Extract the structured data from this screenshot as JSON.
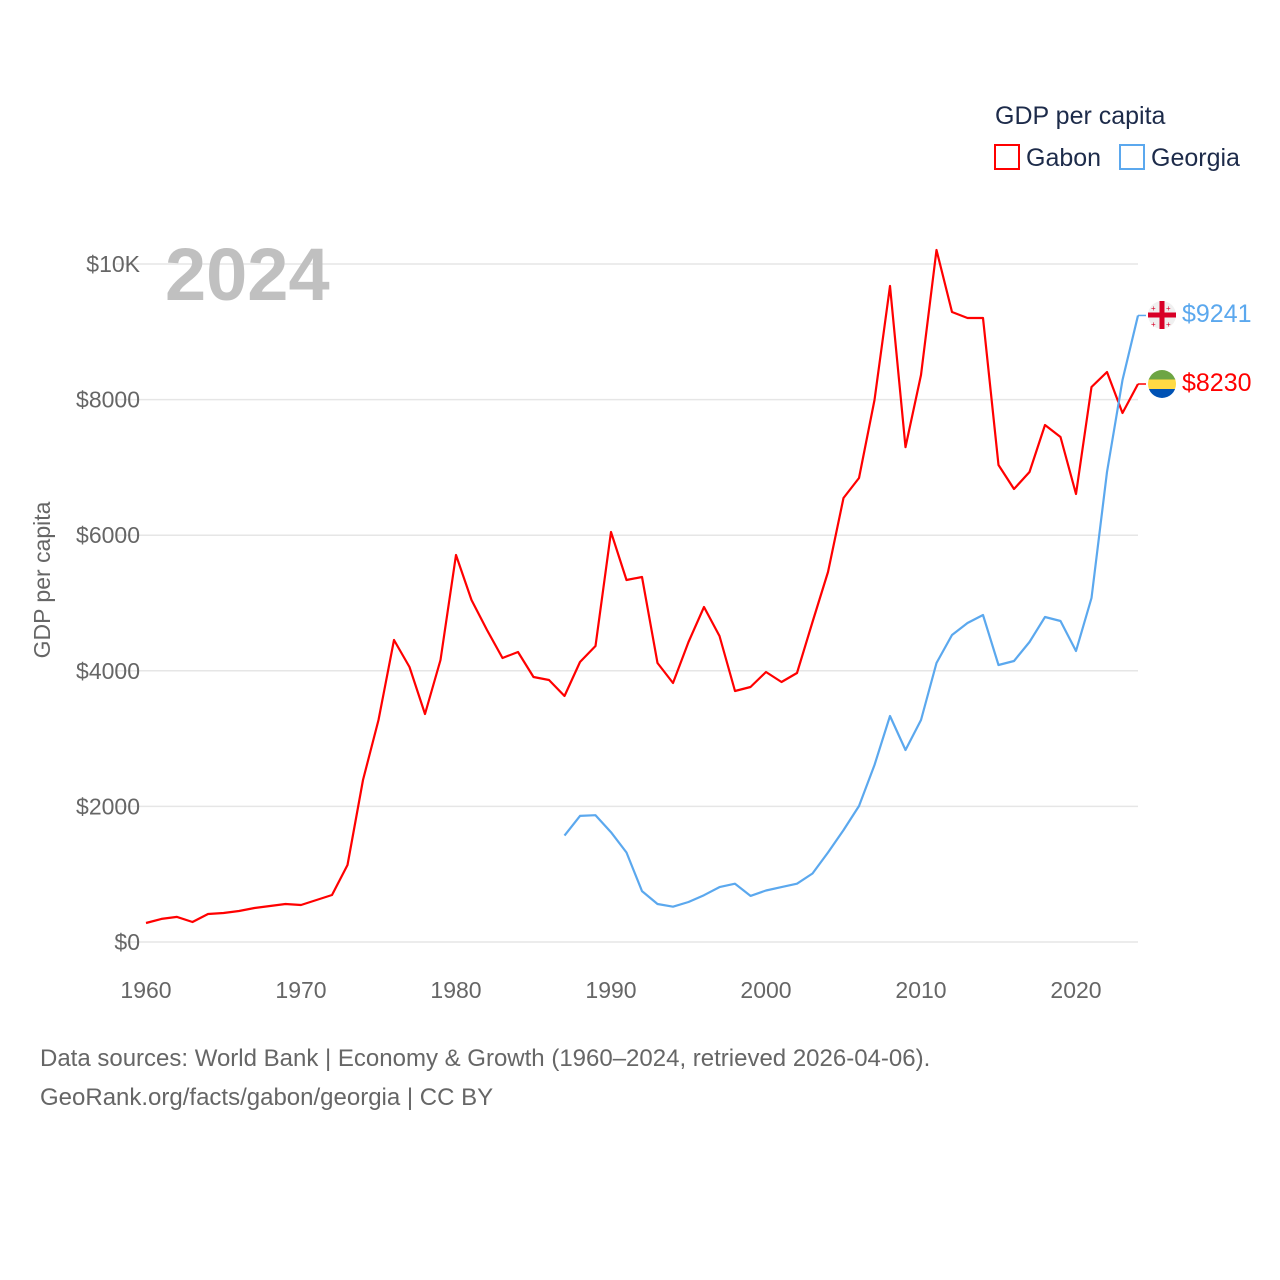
{
  "chart_data": {
    "type": "line",
    "title": "GDP per capita",
    "year_label": "2024",
    "ylabel": "GDP per capita",
    "xlabel": "",
    "ylim": [
      0,
      10000
    ],
    "xlim": [
      1960,
      2024
    ],
    "grid": true,
    "legend_placement": "top-right",
    "y_ticks": [
      {
        "v": 0,
        "label": "$0"
      },
      {
        "v": 2000,
        "label": "$2000"
      },
      {
        "v": 4000,
        "label": "$4000"
      },
      {
        "v": 6000,
        "label": "$6000"
      },
      {
        "v": 8000,
        "label": "$8000"
      },
      {
        "v": 10000,
        "label": "$10K"
      }
    ],
    "x_ticks": [
      {
        "v": 1960,
        "label": "1960"
      },
      {
        "v": 1970,
        "label": "1970"
      },
      {
        "v": 1980,
        "label": "1980"
      },
      {
        "v": 1990,
        "label": "1990"
      },
      {
        "v": 2000,
        "label": "2000"
      },
      {
        "v": 2010,
        "label": "2010"
      },
      {
        "v": 2020,
        "label": "2020"
      }
    ],
    "series": [
      {
        "name": "Gabon",
        "color": "#ff0000",
        "flag": "gabon-flag",
        "end_label": "$8230",
        "start": 1960,
        "values": [
          280,
          340,
          370,
          295,
          413,
          428,
          457,
          501,
          531,
          560,
          546,
          620,
          693,
          1136,
          2389,
          3274,
          4454,
          4056,
          3363,
          4159,
          5708,
          5044,
          4602,
          4189,
          4277,
          3909,
          3864,
          3628,
          4130,
          4366,
          6047,
          5339,
          5383,
          4115,
          3820,
          4425,
          4941,
          4513,
          3702,
          3761,
          3982,
          3835,
          3967,
          4720,
          5457,
          6549,
          6844,
          7994,
          9676,
          7300,
          8363,
          10206,
          9292,
          9204,
          9204,
          7035,
          6681,
          6932,
          7625,
          7448,
          6608,
          8186,
          8407,
          7802,
          8230
        ]
      },
      {
        "name": "Georgia",
        "color": "#5ba8ee",
        "flag": "georgia-flag",
        "end_label": "$9241",
        "start": 1987,
        "values": [
          1570,
          1860,
          1870,
          1620,
          1320,
          750,
          560,
          520,
          590,
          690,
          810,
          860,
          680,
          760,
          810,
          860,
          1010,
          1320,
          1650,
          2006,
          2610,
          3333,
          2832,
          3274,
          4115,
          4528,
          4705,
          4823,
          4085,
          4145,
          4425,
          4793,
          4734,
          4292,
          5074,
          6932,
          8289,
          9241
        ]
      }
    ]
  },
  "footer": {
    "line1": "Data sources: World Bank | Economy & Growth (1960–2024, retrieved 2026-04-06).",
    "line2": "GeoRank.org/facts/gabon/georgia | CC BY"
  }
}
